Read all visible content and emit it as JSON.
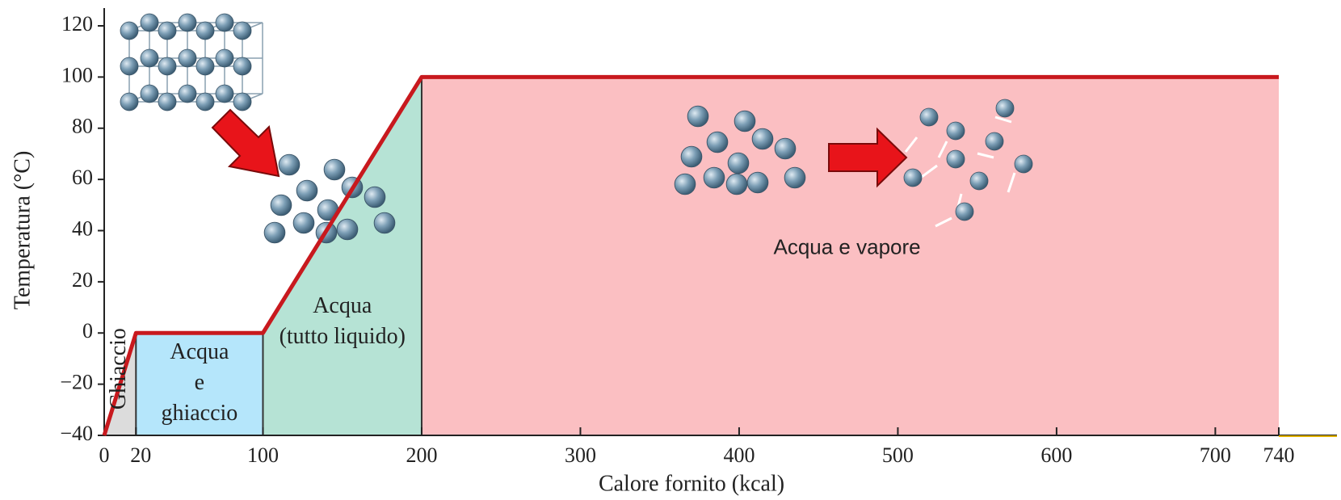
{
  "chart_data": {
    "type": "line",
    "x_label": "Calore fornito (kcal)",
    "y_label": "Temperatura (°C)",
    "x": [
      0,
      20,
      100,
      200,
      740
    ],
    "values": [
      -40,
      0,
      0,
      100,
      100
    ],
    "color": "#c8191e",
    "xlim": [
      0,
      740
    ],
    "ylim": [
      -40,
      120
    ],
    "xticks": [
      0,
      20,
      100,
      200,
      300,
      400,
      500,
      600,
      700,
      740
    ],
    "yticks": [
      {
        "value": -40,
        "label": "−40"
      },
      {
        "value": -20,
        "label": "−20"
      },
      0,
      20,
      40,
      60,
      80,
      100,
      120
    ],
    "regions": [
      {
        "lines": [
          "Ghiaccio"
        ],
        "xrange": [
          0,
          20
        ],
        "color": "#dcdcdc"
      },
      {
        "lines": [
          "Acqua",
          "e",
          "ghiaccio"
        ],
        "xrange": [
          20,
          100
        ],
        "color": "#b5e6fb"
      },
      {
        "lines": [
          "Acqua",
          "(tutto liquido)"
        ],
        "xrange": [
          100,
          200
        ],
        "color": "#b6e3d5"
      },
      {
        "lines": [
          "Acqua e vapore"
        ],
        "xrange": [
          200,
          740
        ],
        "color": "#fbbfc2"
      }
    ]
  }
}
